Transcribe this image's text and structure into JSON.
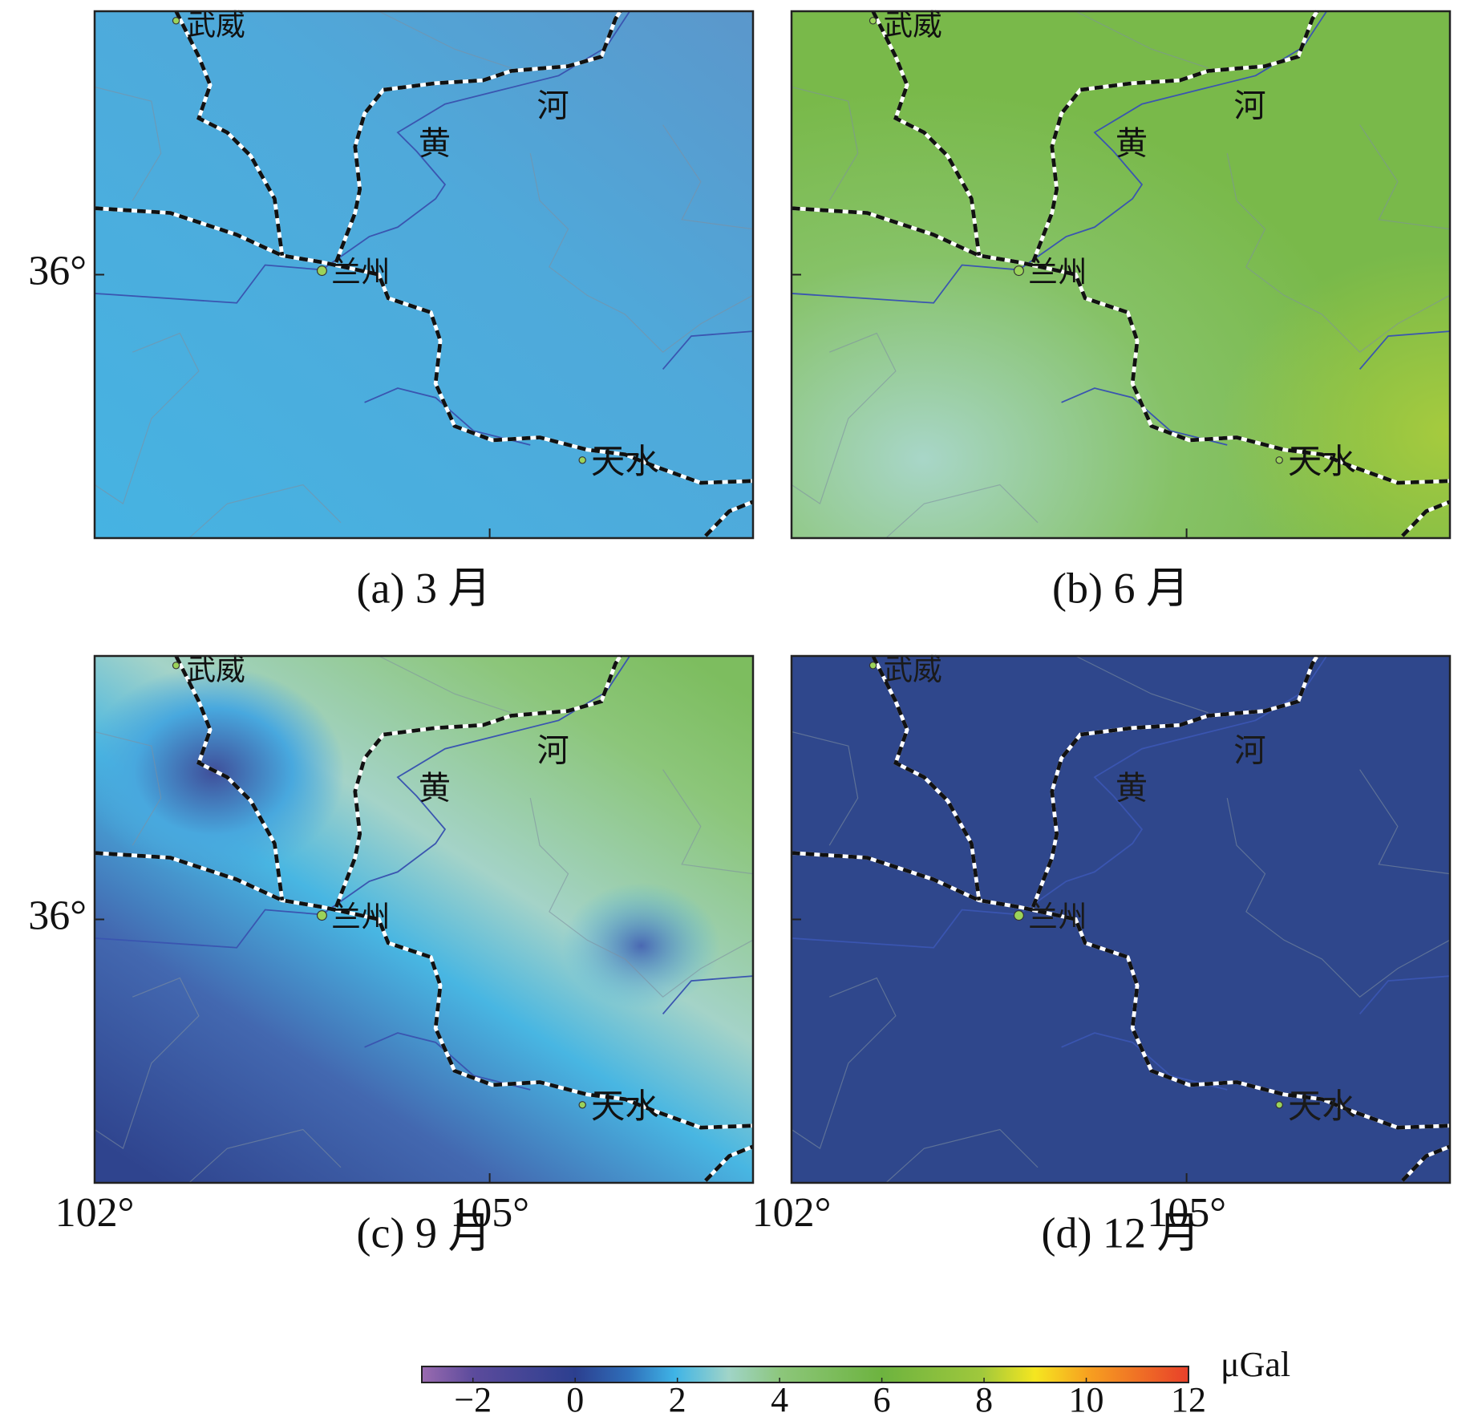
{
  "panels": [
    {
      "label": "(a) 3 月"
    },
    {
      "label": "(b) 6 月"
    },
    {
      "label": "(c) 9 月"
    },
    {
      "label": "(d) 12 月"
    }
  ],
  "places": [
    "武威",
    "兰州",
    "天水"
  ],
  "river_name": [
    "黄",
    "河"
  ],
  "axes": {
    "xlim": [
      102,
      107
    ],
    "ylim": [
      34,
      38
    ],
    "xticks": [
      {
        "value": 102,
        "label": "102°"
      },
      {
        "value": 105,
        "label": "105°"
      }
    ],
    "yticks": [
      {
        "value": 36,
        "label": "36°"
      }
    ]
  },
  "colorbar": {
    "lim": [
      -3,
      12
    ],
    "ticks": [
      {
        "value": -2,
        "label": "−2"
      },
      0,
      2,
      4,
      6,
      8,
      10,
      12
    ],
    "unit": "μGal"
  }
}
